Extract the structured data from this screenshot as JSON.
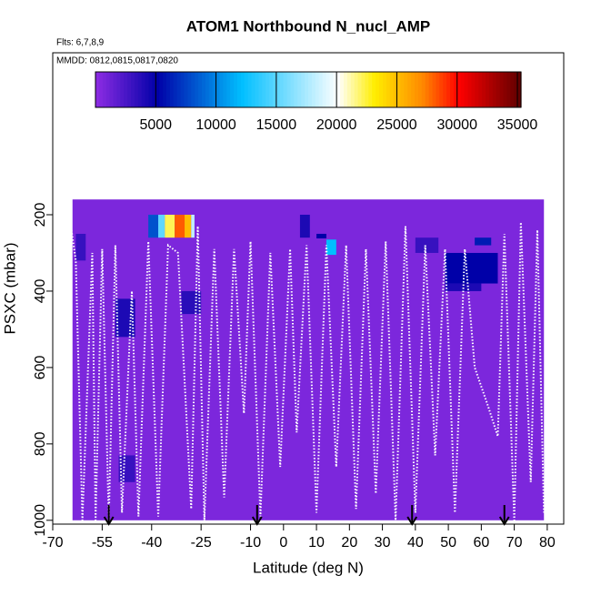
{
  "chart_data": {
    "type": "heatmap",
    "title": "ATOM1 Northbound N_nucl_AMP",
    "subtitle": "Flts: 6,7,8,9",
    "annotation": "MMDD: 0812,0815,0817,0820",
    "xlabel": "Latitude (deg N)",
    "ylabel": "PSXC (mbar)",
    "xlim": [
      -70,
      85
    ],
    "xticks": [
      -70,
      -55,
      -40,
      -25,
      -10,
      0,
      10,
      20,
      30,
      40,
      50,
      60,
      70,
      80
    ],
    "ylim": [
      1010,
      -224
    ],
    "yticks": [
      200,
      400,
      600,
      800,
      1000
    ],
    "clim": [
      0,
      35300
    ],
    "cticks": [
      5000,
      10000,
      15000,
      20000,
      25000,
      30000,
      35000
    ],
    "colorscale": {
      "values": [
        0,
        5000,
        12000,
        20000,
        23000,
        27000,
        30000,
        35300
      ],
      "colors": [
        "#8a2be2",
        "#0000a8",
        "#00bfff",
        "#ffffff",
        "#ffee00",
        "#ff8800",
        "#ff0000",
        "#5a0000"
      ]
    },
    "cells": [
      {
        "lat": [
          -64,
          79
        ],
        "psxc": [
          160,
          1000
        ],
        "value": 500
      },
      {
        "lat": [
          -41,
          -38
        ],
        "psxc": [
          200,
          260
        ],
        "value": 8000
      },
      {
        "lat": [
          -38,
          -36
        ],
        "psxc": [
          200,
          260
        ],
        "value": 15000
      },
      {
        "lat": [
          -36,
          -33
        ],
        "psxc": [
          200,
          260
        ],
        "value": 22000
      },
      {
        "lat": [
          -33,
          -30
        ],
        "psxc": [
          200,
          260
        ],
        "value": 28000
      },
      {
        "lat": [
          -30,
          -28
        ],
        "psxc": [
          200,
          260
        ],
        "value": 25000
      },
      {
        "lat": [
          -28,
          -27
        ],
        "psxc": [
          200,
          260
        ],
        "value": 18000
      },
      {
        "lat": [
          49,
          65
        ],
        "psxc": [
          300,
          380
        ],
        "value": 5000
      },
      {
        "lat": [
          49,
          60
        ],
        "psxc": [
          380,
          400
        ],
        "value": 4000
      },
      {
        "lat": [
          13,
          16
        ],
        "psxc": [
          265,
          305
        ],
        "value": 12000
      },
      {
        "lat": [
          -51,
          -45
        ],
        "psxc": [
          420,
          520
        ],
        "value": 4000
      },
      {
        "lat": [
          -31,
          -25
        ],
        "psxc": [
          400,
          460
        ],
        "value": 3500
      },
      {
        "lat": [
          5,
          8
        ],
        "psxc": [
          200,
          260
        ],
        "value": 4000
      },
      {
        "lat": [
          -63,
          -60
        ],
        "psxc": [
          250,
          320
        ],
        "value": 3000
      },
      {
        "lat": [
          10,
          13
        ],
        "psxc": [
          250,
          262
        ],
        "value": 5000
      },
      {
        "lat": [
          40,
          47
        ],
        "psxc": [
          260,
          300
        ],
        "value": 3000
      },
      {
        "lat": [
          -50,
          -45
        ],
        "psxc": [
          830,
          900
        ],
        "value": 3000
      },
      {
        "lat": [
          58,
          63
        ],
        "psxc": [
          260,
          280
        ],
        "value": 6000
      }
    ],
    "tracks": {
      "lat": [
        -68,
        -67,
        -65,
        -63,
        -61,
        -58,
        -57,
        -55,
        -53,
        -51,
        -49,
        -46,
        -44,
        -41,
        -38,
        -35,
        -32,
        -28,
        -26,
        -24,
        -21,
        -18,
        -15,
        -12,
        -10,
        -7,
        -4,
        -1,
        2,
        4,
        7,
        10,
        13,
        16,
        19,
        22,
        25,
        28,
        31,
        34,
        37,
        40,
        43,
        46,
        49,
        52,
        55,
        58,
        62,
        65,
        67,
        70,
        72,
        75,
        77,
        79
      ],
      "psxc": [
        1000,
        210,
        200,
        320,
        1000,
        300,
        1000,
        290,
        1000,
        280,
        980,
        400,
        990,
        270,
        990,
        280,
        300,
        970,
        230,
        1000,
        290,
        940,
        290,
        720,
        270,
        990,
        300,
        860,
        290,
        770,
        280,
        980,
        280,
        860,
        280,
        970,
        290,
        930,
        270,
        1000,
        230,
        980,
        280,
        830,
        290,
        980,
        290,
        600,
        700,
        780,
        250,
        1000,
        220,
        900,
        240,
        980
      ]
    },
    "arrows": [
      -53,
      -8,
      39,
      67
    ]
  }
}
